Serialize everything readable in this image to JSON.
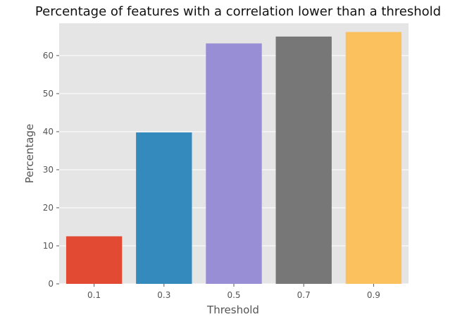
{
  "chart_data": {
    "type": "bar",
    "title": "Percentage of features with a correlation lower than a threshold",
    "xlabel": "Threshold",
    "ylabel": "Percentage",
    "categories": [
      "0.1",
      "0.3",
      "0.5",
      "0.7",
      "0.9"
    ],
    "values": [
      12.5,
      39.8,
      63.2,
      65.0,
      66.2
    ],
    "ylim": [
      0,
      68.5
    ],
    "yticks": [
      0,
      10,
      20,
      30,
      40,
      50,
      60
    ],
    "colors": [
      "#E24A33",
      "#348ABD",
      "#988ED5",
      "#777777",
      "#FBC15E"
    ],
    "background": "#E5E5E5",
    "grid": true,
    "legend": "none"
  }
}
